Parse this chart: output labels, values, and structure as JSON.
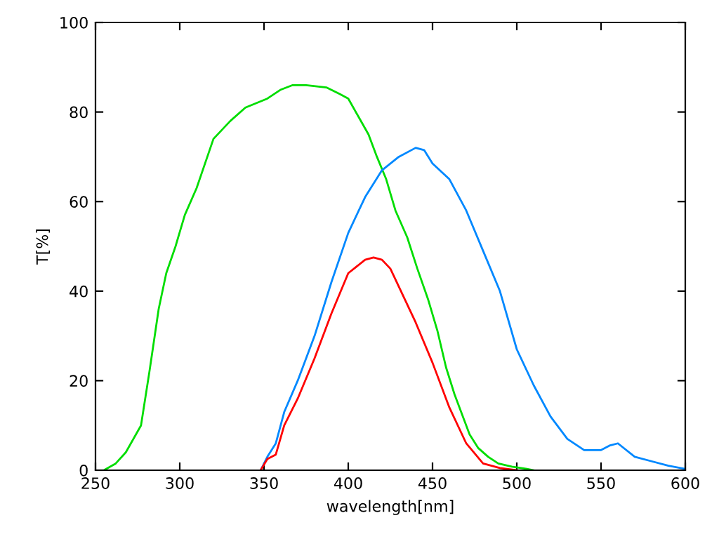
{
  "chart_data": {
    "type": "line",
    "xlabel": "wavelength[nm]",
    "ylabel": "T[%]",
    "xlim": [
      250,
      600
    ],
    "ylim": [
      0,
      100
    ],
    "xticks": [
      250,
      300,
      350,
      400,
      450,
      500,
      550,
      600
    ],
    "yticks": [
      0,
      20,
      40,
      60,
      80,
      100
    ],
    "grid": false,
    "series": [
      {
        "color": "#00dd00",
        "x": [
          255,
          262,
          268,
          277,
          282,
          287.5,
          292,
          297.5,
          303,
          310,
          320,
          330,
          339,
          352,
          360,
          367,
          375,
          387,
          395,
          400,
          406,
          412,
          417,
          422.5,
          428,
          435,
          441,
          447.5,
          453,
          458,
          463,
          468,
          472,
          477,
          483,
          489,
          497,
          506,
          510
        ],
        "values": [
          0,
          1.5,
          4,
          10,
          22,
          36,
          44,
          50,
          57,
          63,
          74,
          78,
          81,
          83,
          85,
          86,
          86,
          85.5,
          84,
          83,
          79,
          75,
          70,
          65,
          58,
          52,
          45,
          38,
          31,
          23,
          17,
          12,
          8,
          5,
          3,
          1.5,
          0.8,
          0.3,
          0
        ]
      },
      {
        "color": "#0088ff",
        "x": [
          348,
          352,
          357,
          362,
          370,
          380,
          390,
          400,
          410,
          420,
          430,
          440,
          445,
          450,
          460,
          470,
          480,
          490,
          500,
          510,
          520,
          530,
          540,
          550,
          555,
          560,
          570,
          580,
          590,
          600
        ],
        "values": [
          0,
          3,
          6,
          13,
          20,
          30,
          42,
          53,
          61,
          67,
          70,
          72,
          71.5,
          68.5,
          65,
          58,
          49,
          40,
          27,
          19,
          12,
          7,
          4.5,
          4.5,
          5.5,
          6,
          3,
          2,
          1,
          0.3
        ]
      },
      {
        "color": "#ff0000",
        "x": [
          348,
          352,
          357,
          362,
          370,
          380,
          390,
          400,
          410,
          415,
          420,
          425,
          430,
          440,
          450,
          460,
          470,
          480,
          490,
          500
        ],
        "values": [
          0,
          2.5,
          3.5,
          10,
          16,
          25,
          35,
          44,
          47,
          47.5,
          47,
          45,
          41,
          33,
          24,
          14,
          6,
          1.5,
          0.5,
          0
        ]
      }
    ]
  }
}
